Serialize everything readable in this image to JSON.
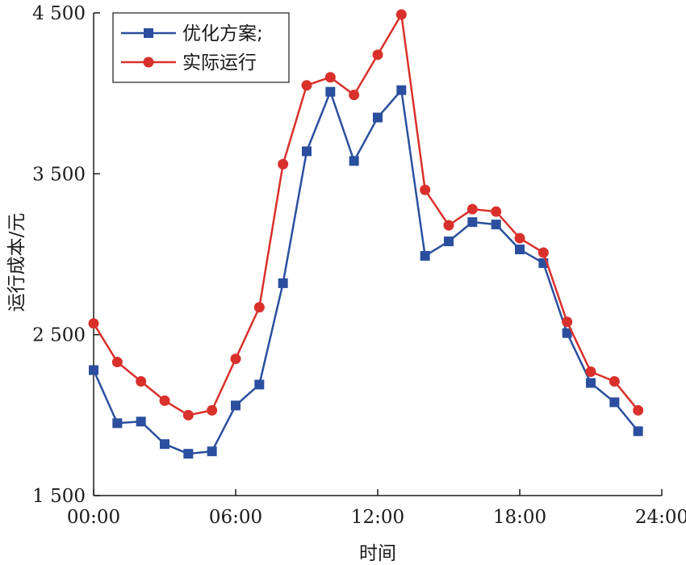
{
  "chart_data": {
    "type": "line",
    "xlabel": "时间",
    "ylabel": "运行成本/元",
    "xlim": [
      0,
      24
    ],
    "ylim": [
      1500,
      4500
    ],
    "x_ticks": [
      {
        "value": 0,
        "label": "00:00"
      },
      {
        "value": 6,
        "label": "06:00"
      },
      {
        "value": 12,
        "label": "12:00"
      },
      {
        "value": 18,
        "label": "18:00"
      },
      {
        "value": 24,
        "label": "24:00"
      }
    ],
    "y_ticks": [
      {
        "value": 1500,
        "label": "1 500"
      },
      {
        "value": 2500,
        "label": "2 500"
      },
      {
        "value": 3500,
        "label": "3 500"
      },
      {
        "value": 4500,
        "label": "4 500"
      }
    ],
    "grid": false,
    "legend_position": "top-left",
    "x": [
      0,
      1,
      2,
      3,
      4,
      5,
      6,
      7,
      8,
      9,
      10,
      11,
      12,
      13,
      14,
      15,
      16,
      17,
      18,
      19,
      20,
      21,
      22,
      23
    ],
    "series": [
      {
        "name": "优化方案;",
        "color": "#2b4f9e",
        "marker": "square",
        "values": [
          2280,
          1950,
          1960,
          1820,
          1760,
          1775,
          2060,
          2190,
          2820,
          3640,
          4010,
          3580,
          3850,
          4020,
          2990,
          3080,
          3200,
          3185,
          3030,
          2945,
          2510,
          2200,
          2080,
          1900
        ]
      },
      {
        "name": "实际运行",
        "color": "#d9302b",
        "marker": "circle",
        "values": [
          2570,
          2330,
          2210,
          2090,
          2000,
          2030,
          2350,
          2670,
          3560,
          4050,
          4100,
          3990,
          4240,
          4490,
          3400,
          3180,
          3280,
          3265,
          3100,
          3010,
          2580,
          2270,
          2210,
          2030
        ]
      }
    ]
  }
}
